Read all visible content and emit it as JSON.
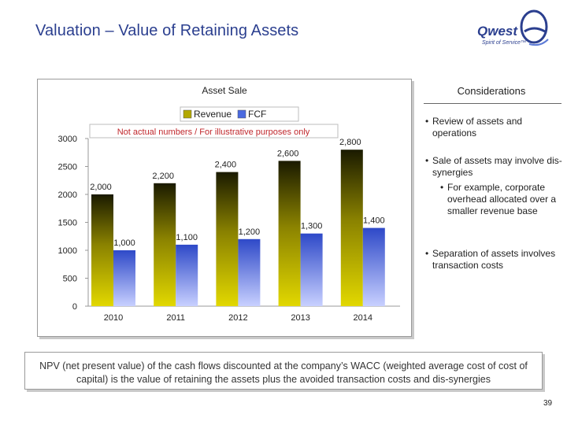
{
  "slide": {
    "title": "Valuation – Value of Retaining Assets",
    "page_number": "39",
    "logo": {
      "wordmark": "Qwest",
      "tagline": "Spirit of Service™"
    }
  },
  "chart_data": {
    "type": "bar",
    "title": "Asset Sale",
    "annotation": "Not actual numbers / For illustrative purposes only",
    "categories": [
      "2010",
      "2011",
      "2012",
      "2013",
      "2014"
    ],
    "series": [
      {
        "name": "Revenue",
        "values": [
          2000,
          2200,
          2400,
          2600,
          2800
        ],
        "value_labels": [
          "2,000",
          "2,200",
          "2,400",
          "2,600",
          "2,800"
        ],
        "color": "#b3a800"
      },
      {
        "name": "FCF",
        "values": [
          1000,
          1100,
          1200,
          1300,
          1400
        ],
        "value_labels": [
          "1,000",
          "1,100",
          "1,200",
          "1,300",
          "1,400"
        ],
        "color": "#4a6ae0"
      }
    ],
    "yticks": [
      "0",
      "500",
      "1000",
      "1500",
      "2000",
      "2500",
      "3000"
    ],
    "ylim": [
      0,
      3000
    ],
    "legend_position": "top",
    "grid": false
  },
  "considerations": {
    "title": "Considerations",
    "bullets": [
      {
        "dot": "•",
        "text": "Review of assets and operations"
      },
      {
        "dot": "•",
        "text": "Sale of assets may involve dis-synergies"
      },
      {
        "dot": "•",
        "text": "For example, corporate overhead allocated over a smaller revenue base"
      },
      {
        "dot": "•",
        "text": "Separation of assets involves transaction costs"
      }
    ]
  },
  "npv_note": "NPV (net present value) of the cash flows discounted at the company’s WACC (weighted average cost of cost of capital) is the value of retaining the assets plus the avoided transaction costs and dis-synergies",
  "colors": {
    "title": "#2b3f8f",
    "revenue": "#b3a800",
    "fcf": "#4a6ae0",
    "annotation": "#c0282d"
  }
}
